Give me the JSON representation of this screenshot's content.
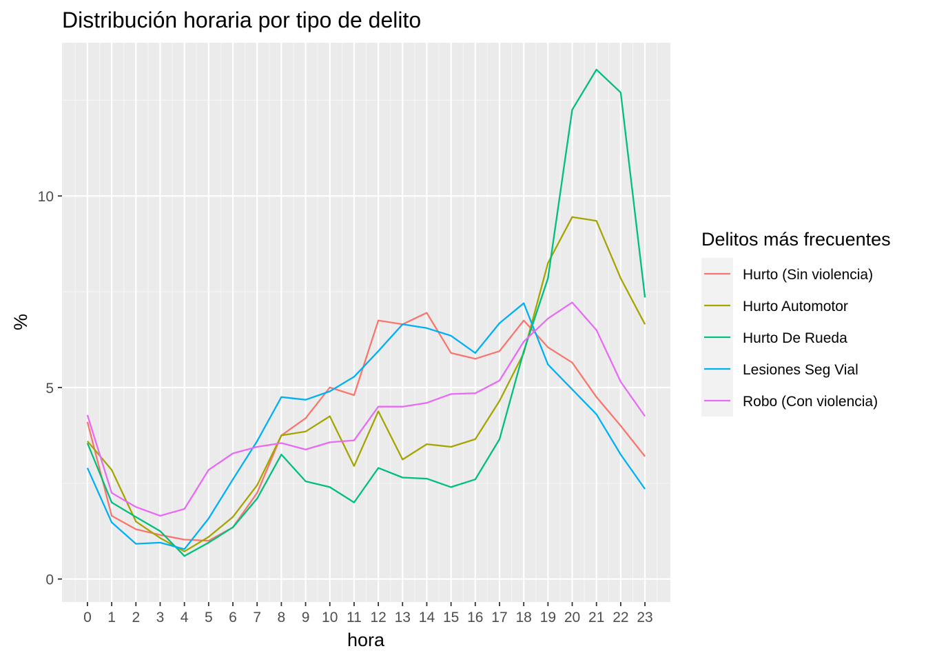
{
  "chart_data": {
    "type": "line",
    "title": "Distribución horaria por tipo de delito",
    "xlabel": "hora",
    "ylabel": "%",
    "x": [
      0,
      1,
      2,
      3,
      4,
      5,
      6,
      7,
      8,
      9,
      10,
      11,
      12,
      13,
      14,
      15,
      16,
      17,
      18,
      19,
      20,
      21,
      22,
      23
    ],
    "x_tick_labels": [
      "0",
      "1",
      "2",
      "3",
      "4",
      "5",
      "6",
      "7",
      "8",
      "9",
      "10",
      "11",
      "12",
      "13",
      "14",
      "15",
      "16",
      "17",
      "18",
      "19",
      "20",
      "21",
      "22",
      "23"
    ],
    "xlim": [
      -1.05,
      24.05
    ],
    "ylim": [
      -0.6,
      14.0
    ],
    "y_ticks": [
      0,
      5,
      10
    ],
    "y_tick_labels": [
      "0",
      "5",
      "10"
    ],
    "grid": true,
    "legend": {
      "title": "Delitos más frecuentes",
      "position": "right"
    },
    "series": [
      {
        "name": "Hurto (Sin violencia)",
        "color": "#F8766D",
        "values": [
          4.1,
          1.65,
          1.3,
          1.15,
          1.03,
          1.0,
          1.35,
          2.25,
          3.75,
          4.2,
          5.0,
          4.8,
          6.75,
          6.65,
          6.95,
          5.9,
          5.75,
          5.95,
          6.75,
          6.05,
          5.65,
          4.75,
          4.0,
          3.2
        ]
      },
      {
        "name": "Hurto Automotor",
        "color": "#A3A500",
        "values": [
          3.6,
          2.85,
          1.5,
          1.07,
          0.72,
          1.1,
          1.62,
          2.45,
          3.75,
          3.85,
          4.25,
          2.95,
          4.38,
          3.12,
          3.52,
          3.45,
          3.65,
          4.65,
          5.9,
          8.25,
          9.45,
          9.35,
          7.85,
          6.65
        ]
      },
      {
        "name": "Hurto De Rueda",
        "color": "#00BF7D",
        "values": [
          3.55,
          2.0,
          1.62,
          1.25,
          0.6,
          0.95,
          1.35,
          2.1,
          3.25,
          2.55,
          2.4,
          2.0,
          2.9,
          2.65,
          2.62,
          2.4,
          2.6,
          3.65,
          5.95,
          7.85,
          12.25,
          13.3,
          12.7,
          7.35
        ]
      },
      {
        "name": "Lesiones Seg Vial",
        "color": "#00B0F6",
        "values": [
          2.9,
          1.48,
          0.92,
          0.95,
          0.78,
          1.58,
          2.6,
          3.6,
          4.75,
          4.68,
          4.9,
          5.28,
          5.95,
          6.65,
          6.55,
          6.35,
          5.9,
          6.68,
          7.2,
          5.6,
          4.95,
          4.3,
          3.25,
          2.35
        ]
      },
      {
        "name": "Robo (Con violencia)",
        "color": "#E76BF3",
        "values": [
          4.28,
          2.25,
          1.88,
          1.65,
          1.83,
          2.85,
          3.28,
          3.45,
          3.55,
          3.38,
          3.57,
          3.62,
          4.5,
          4.5,
          4.6,
          4.83,
          4.85,
          5.18,
          6.2,
          6.8,
          7.22,
          6.5,
          5.15,
          4.25
        ]
      }
    ]
  }
}
